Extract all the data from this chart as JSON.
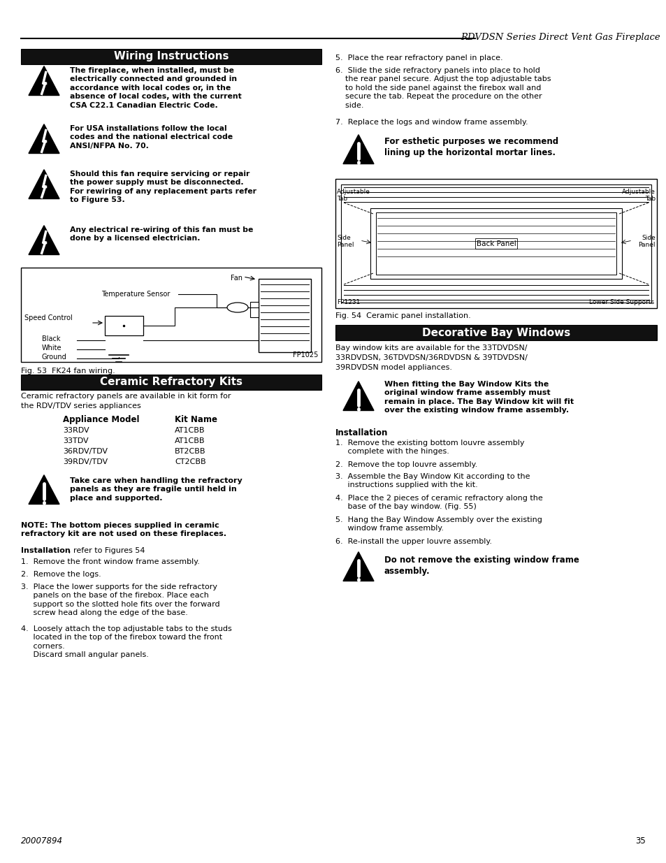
{
  "page_title": "RDVDSN Series Direct Vent Gas Fireplace",
  "page_number": "35",
  "doc_number": "20007894",
  "background_color": "#ffffff",
  "section_bg_color": "#111111",
  "section_text_color": "#ffffff",
  "wiring_warnings": [
    "The fireplace, when installed, must be\nelectrically connected and grounded in\naccordance with local codes or, in the\nabsence of local codes, with the current\nCSA C22.1 Canadian Electric Code.",
    "For USA installations follow the local\ncodes and the national electrical code\nANSI/NFPA No. 70.",
    "Should this fan require servicing or repair\nthe power supply must be disconnected.\nFor rewiring of any replacement parts refer\nto Figure 53.",
    "Any electrical re-wiring of this fan must be\ndone by a licensed electrician."
  ],
  "fig53_caption": "Fig. 53  FK24 fan wiring.",
  "ceramic_text_lines": [
    "Ceramic refractory panels are available in kit form for",
    "the RDV/TDV series appliances"
  ],
  "appliance_header": [
    "Appliance Model",
    "Kit Name"
  ],
  "appliance_data": [
    [
      "33RDV",
      "AT1CBB"
    ],
    [
      "33TDV",
      "AT1CBB"
    ],
    [
      "36RDV/TDV",
      "BT2CBB"
    ],
    [
      "39RDV/TDV",
      "CT2CBB"
    ]
  ],
  "ceramic_warning": "Take care when handling the refractory\npanels as they are fragile until held in\nplace and supported.",
  "ceramic_note_bold": "NOTE: The bottom pieces supplied in ceramic\nrefractory kit are not used on these fireplaces.",
  "installation_label": "Installation",
  "installation_ref": ", refer to Figures 54",
  "ceramic_steps": [
    "1.  Remove the front window frame assembly.",
    "2.  Remove the logs.",
    "3.  Place the lower supports for the side refractory\n     panels on the base of the firebox. Place each\n     support so the slotted hole fits over the forward\n     screw head along the edge of the base.",
    "4.  Loosely attach the top adjustable tabs to the studs\n     located in the top of the firebox toward the front\n     corners.\n     Discard small angular panels."
  ],
  "right_steps_top": [
    "5.  Place the rear refractory panel in place.",
    "6.  Slide the side refractory panels into place to hold\n    the rear panel secure. Adjust the top adjustable tabs\n    to hold the side panel against the firebox wall and\n    secure the tab. Repeat the procedure on the other\n    side.",
    "7.  Replace the logs and window frame assembly."
  ],
  "right_warning": "For esthetic purposes we recommend\nlining up the horizontal mortar lines.",
  "fig54_caption": "Fig. 54  Ceramic panel installation.",
  "bay_section_title": "Decorative Bay Windows",
  "bay_text": "Bay window kits are available for the 33TDVDSN/\n33RDVDSN, 36TDVDSN/36RDVDSN & 39TDVDSN/\n39RDVDSN model appliances.",
  "bay_warning": "When fitting the Bay Window Kits the\noriginal window frame assembly must\nremain in place. The Bay Window kit will fit\nover the existing window frame assembly.",
  "bay_installation_label": "Installation",
  "bay_steps": [
    "1.  Remove the existing bottom louvre assembly\n     complete with the hinges.",
    "2.  Remove the top louvre assembly.",
    "3.  Assemble the Bay Window Kit according to the\n     instructions supplied with the kit.",
    "4.  Place the 2 pieces of ceramic refractory along the\n     base of the bay window. (Fig. 55)",
    "5.  Hang the Bay Window Assembly over the existing\n     window frame assembly.",
    "6.  Re-install the upper louvre assembly."
  ],
  "bay_final_warning": "Do not remove the existing window frame\nassembly."
}
